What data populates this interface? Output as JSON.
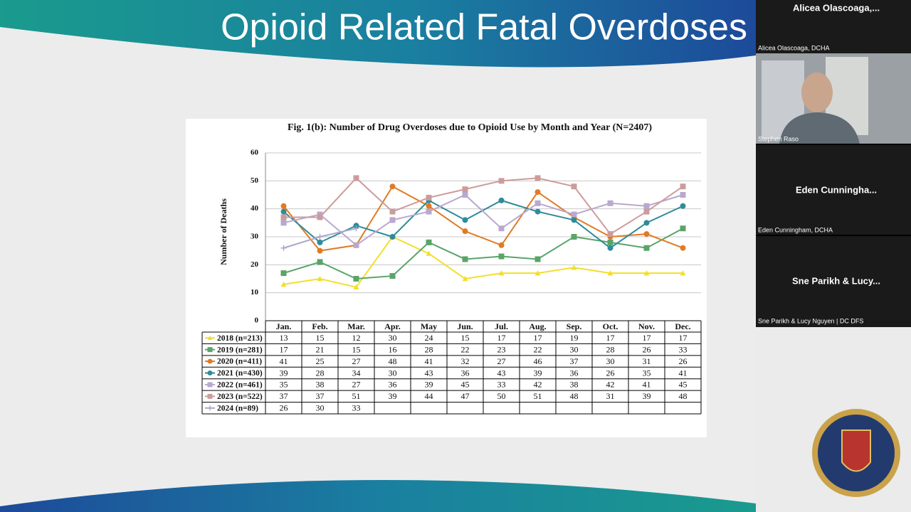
{
  "slide_title": "Opioid Related Fatal Overdoses",
  "participants": [
    {
      "tile_name": "Alicea  Olascoaga,...",
      "caption": "Alicea Olascoaga, DCHA"
    },
    {
      "caption": "Stephen Raso"
    },
    {
      "tile_name": "Eden  Cunningha...",
      "caption": "Eden Cunningham, DCHA"
    },
    {
      "tile_name": "Sne Parikh & Lucy...",
      "caption": "Sne Parikh & Lucy Nguyen | DC DFS"
    }
  ],
  "chart_data": {
    "type": "line",
    "title": "Fig. 1(b): Number of Drug Overdoses due to Opioid Use by Month and Year (N=2407)",
    "y_label": "Number of Deaths",
    "categories": [
      "Jan.",
      "Feb.",
      "Mar.",
      "Apr.",
      "May",
      "Jun.",
      "Jul.",
      "Aug.",
      "Sep.",
      "Oct.",
      "Nov.",
      "Dec."
    ],
    "series": [
      {
        "name": "2018 (n=213)",
        "color": "#f2df2a",
        "marker": "triangle",
        "values": [
          13,
          15,
          12,
          30,
          24,
          15,
          17,
          17,
          19,
          17,
          17,
          17
        ]
      },
      {
        "name": "2019 (n=281)",
        "color": "#5aa469",
        "marker": "square",
        "values": [
          17,
          21,
          15,
          16,
          28,
          22,
          23,
          22,
          30,
          28,
          26,
          33
        ]
      },
      {
        "name": "2020 (n=411)",
        "color": "#e07b24",
        "marker": "circle",
        "values": [
          41,
          25,
          27,
          48,
          41,
          32,
          27,
          46,
          37,
          30,
          31,
          26
        ]
      },
      {
        "name": "2021 (n=430)",
        "color": "#2e8b9a",
        "marker": "circle",
        "values": [
          39,
          28,
          34,
          30,
          43,
          36,
          43,
          39,
          36,
          26,
          35,
          41
        ]
      },
      {
        "name": "2022 (n=461)",
        "color": "#b9a8cf",
        "marker": "square",
        "values": [
          35,
          38,
          27,
          36,
          39,
          45,
          33,
          42,
          38,
          42,
          41,
          45
        ]
      },
      {
        "name": "2023 (n=522)",
        "color": "#cc9c9c",
        "marker": "square",
        "values": [
          37,
          37,
          51,
          39,
          44,
          47,
          50,
          51,
          48,
          31,
          39,
          48
        ]
      },
      {
        "name": "2024 (n=89)",
        "color": "#a9a9c9",
        "marker": "plus",
        "values": [
          26,
          30,
          33,
          null,
          null,
          null,
          null,
          null,
          null,
          null,
          null,
          null
        ]
      }
    ],
    "ylim": [
      0,
      60
    ],
    "yticks": [
      0,
      10,
      20,
      30,
      40,
      50,
      60
    ],
    "grid": true
  }
}
